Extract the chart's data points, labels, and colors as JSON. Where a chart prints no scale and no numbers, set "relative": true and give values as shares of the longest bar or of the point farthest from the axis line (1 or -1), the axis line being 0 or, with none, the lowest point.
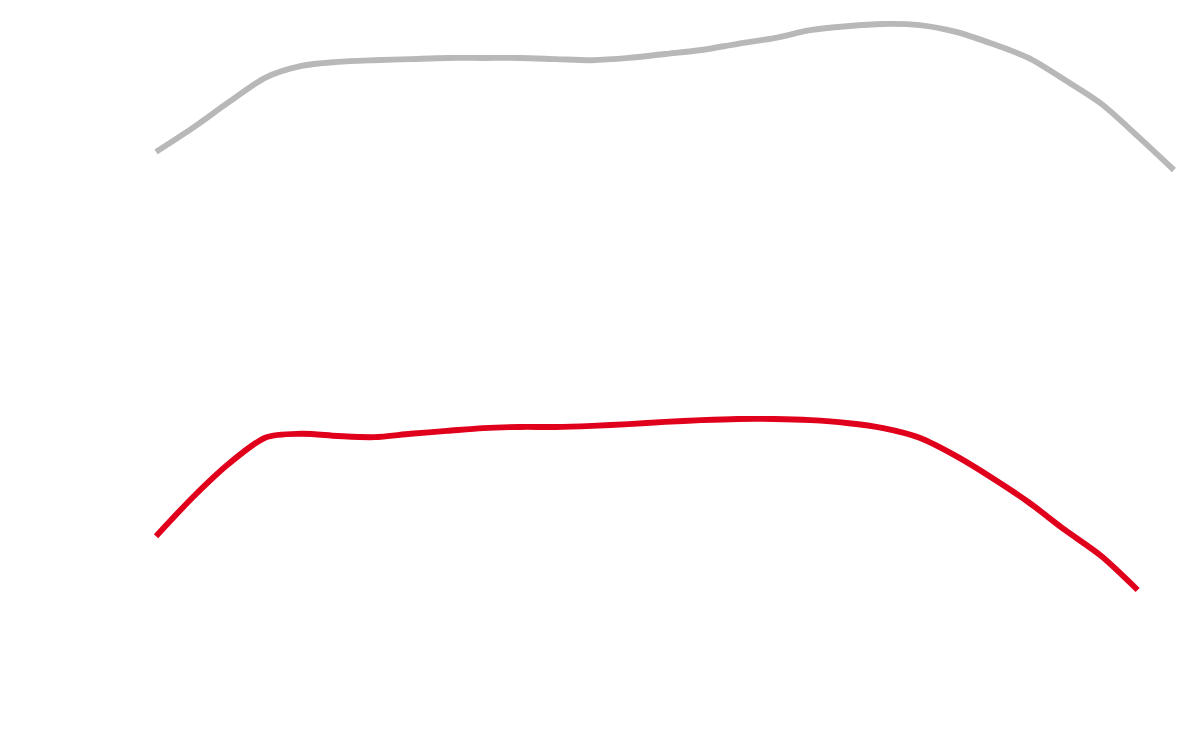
{
  "chart_data": {
    "type": "line",
    "relative": true,
    "categories": [
      null,
      null,
      null,
      null,
      null,
      null,
      null,
      null,
      null,
      null,
      null,
      null,
      null,
      null,
      null,
      null,
      null,
      null,
      null,
      null,
      null,
      null,
      null,
      null,
      null,
      null,
      null,
      null,
      null
    ],
    "series": [
      {
        "color": "#b8b8b8",
        "values": [
          0.774,
          0.816,
          0.862,
          0.905,
          0.926,
          0.933,
          0.936,
          0.938,
          0.94,
          0.94,
          0.94,
          0.938,
          0.936,
          0.94,
          0.947,
          0.954,
          0.965,
          0.975,
          0.989,
          0.996,
          1.0,
          0.998,
          0.986,
          0.965,
          0.94,
          0.901,
          0.859,
          0.802,
          0.742
        ]
      },
      {
        "color": "#e0001b",
        "values": [
          0.095,
          0.163,
          0.223,
          0.269,
          0.276,
          0.272,
          0.27,
          0.276,
          0.281,
          0.286,
          0.288,
          0.288,
          0.29,
          0.293,
          0.297,
          0.3,
          0.302,
          0.302,
          0.3,
          0.295,
          0.286,
          0.269,
          0.237,
          0.198,
          0.155,
          0.106,
          0.06,
          0.0,
          null
        ]
      }
    ]
  }
}
